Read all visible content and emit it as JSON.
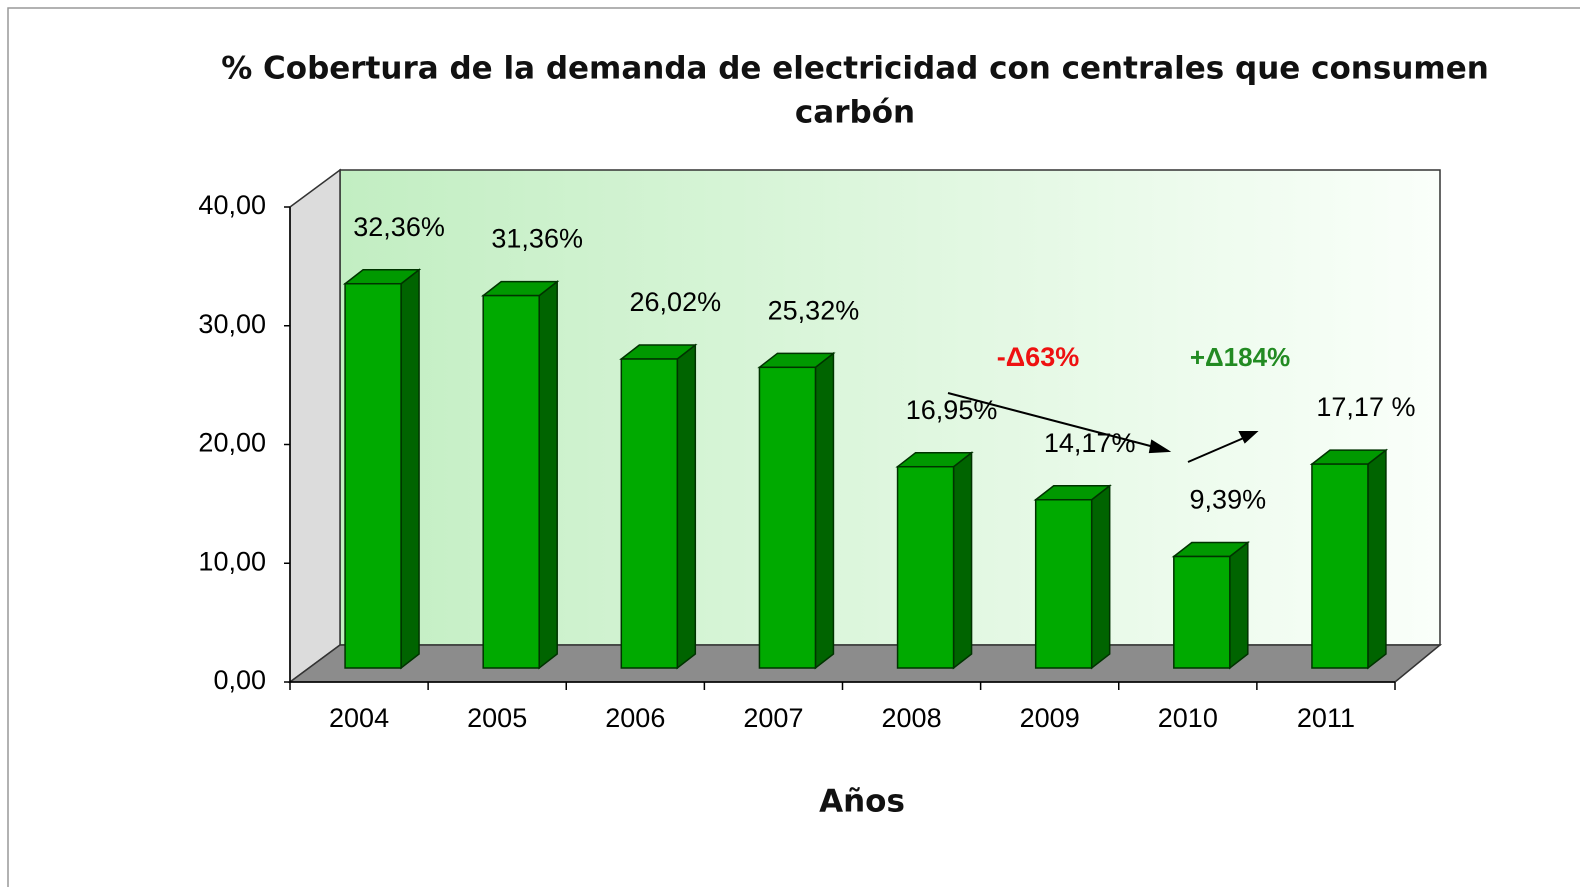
{
  "chart_data": {
    "type": "bar3d",
    "title": "% Cobertura de la demanda de electricidad con centrales que consumen",
    "title_line2": "carbón",
    "x_label": "Años",
    "categories": [
      "2004",
      "2005",
      "2006",
      "2007",
      "2008",
      "2009",
      "2010",
      "2011"
    ],
    "values": [
      32.36,
      31.36,
      26.02,
      25.32,
      16.95,
      14.17,
      9.39,
      17.17
    ],
    "value_labels": [
      "32,36%",
      "31,36%",
      "26,02%",
      "25,32%",
      "16,95%",
      "14,17%",
      "9,39%",
      "17,17 %"
    ],
    "color": "#00aa00",
    "ylim": [
      0,
      40
    ],
    "yticks": [
      {
        "value": 0,
        "label": "0,00"
      },
      {
        "value": 10,
        "label": "10,00"
      },
      {
        "value": 20,
        "label": "20,00"
      },
      {
        "value": 30,
        "label": "30,00"
      },
      {
        "value": 40,
        "label": "40,00"
      }
    ],
    "annotations": [
      {
        "text": "-Δ63%",
        "color": "#ee1111"
      },
      {
        "text": "+Δ184%",
        "color": "#228b22"
      }
    ]
  }
}
